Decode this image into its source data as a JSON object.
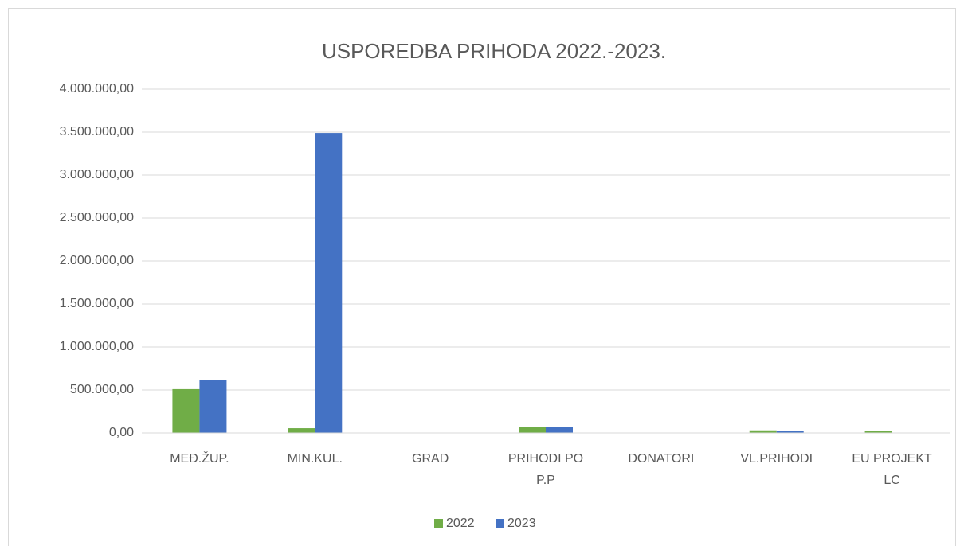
{
  "chart_data": {
    "type": "bar",
    "title": "USPOREDBA PRIHODA 2022.-2023.",
    "categories": [
      "MEĐ.ŽUP.",
      "MIN.KUL.",
      "GRAD",
      "PRIHODI PO P.P",
      "DONATORI",
      "VL.PRIHODI",
      "EU PROJEKT LC"
    ],
    "series": [
      {
        "name": "2022",
        "color": "#70ad47",
        "values": [
          510000,
          55000,
          0,
          70000,
          0,
          30000,
          20000
        ]
      },
      {
        "name": "2023",
        "color": "#4472c4",
        "values": [
          620000,
          3490000,
          0,
          70000,
          0,
          20000,
          0
        ]
      }
    ],
    "ylim": [
      0,
      4000000
    ],
    "yticks": [
      {
        "value": 0,
        "label": "0,00"
      },
      {
        "value": 500000,
        "label": "500.000,00"
      },
      {
        "value": 1000000,
        "label": "1.000.000,00"
      },
      {
        "value": 1500000,
        "label": "1.500.000,00"
      },
      {
        "value": 2000000,
        "label": "2.000.000,00"
      },
      {
        "value": 2500000,
        "label": "2.500.000,00"
      },
      {
        "value": 3000000,
        "label": "3.000.000,00"
      },
      {
        "value": 3500000,
        "label": "3.500.000,00"
      },
      {
        "value": 4000000,
        "label": "4.000.000,00"
      }
    ],
    "grid": true,
    "legend": "bottom"
  }
}
